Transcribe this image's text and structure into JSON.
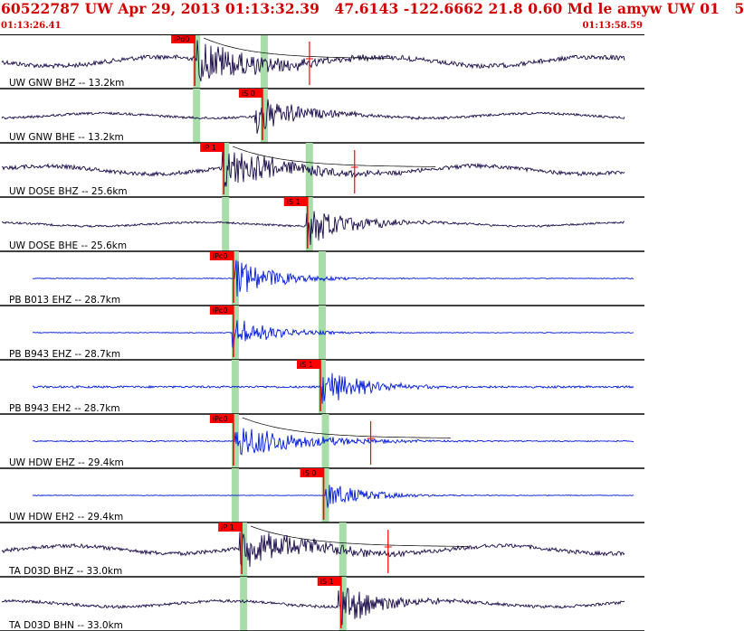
{
  "header": {
    "title": "60522787 UW Apr 29, 2013 01:13:32.39   47.6143 -122.6662 21.8 0.60 Md le amyw UW 01   5",
    "time_start": "01:13:26.41",
    "time_end": "01:13:58.59"
  },
  "colors": {
    "header_text": "#d00000",
    "trace_uw": "#1a0a4a",
    "trace_pb": "#0018d8",
    "pick": "#ff0000",
    "window": "#a8dca8",
    "separator": "#000000"
  },
  "traces": [
    {
      "label": "UW GNW BHZ -- 13.2km",
      "pick": "iPd0",
      "color_key": "uw",
      "p_frac": 0.305,
      "s_frac": 0.41,
      "pick_kind": "P",
      "onset": 0.305,
      "noise": 0.35,
      "burst": 1.0,
      "coda": true
    },
    {
      "label": "UW GNW BHE -- 13.2km",
      "pick": "iS 0",
      "color_key": "uw",
      "p_frac": 0.305,
      "s_frac": 0.41,
      "pick_kind": "S",
      "onset": 0.395,
      "noise": 0.18,
      "burst": 0.95,
      "coda": false
    },
    {
      "label": "UW DOSE BHZ -- 25.6km",
      "pick": "iP 1",
      "color_key": "uw",
      "p_frac": 0.35,
      "s_frac": 0.48,
      "pick_kind": "P",
      "onset": 0.345,
      "noise": 0.3,
      "burst": 1.0,
      "coda": true
    },
    {
      "label": "UW DOSE BHE -- 25.6km",
      "pick": "iS 1",
      "color_key": "uw",
      "p_frac": 0.35,
      "s_frac": 0.48,
      "pick_kind": "S",
      "onset": 0.475,
      "noise": 0.15,
      "burst": 1.0,
      "coda": false
    },
    {
      "label": "PB B013 EHZ -- 28.7km",
      "pick": "iPc0",
      "color_key": "pb",
      "p_frac": 0.365,
      "s_frac": 0.5,
      "pick_kind": "P",
      "onset": 0.365,
      "noise": 0.06,
      "burst": 0.9,
      "coda": false
    },
    {
      "label": "PB B943 EHZ -- 28.7km",
      "pick": "iPc0",
      "color_key": "pb",
      "p_frac": 0.365,
      "s_frac": 0.5,
      "pick_kind": "P",
      "onset": 0.36,
      "noise": 0.06,
      "burst": 0.7,
      "coda": false
    },
    {
      "label": "PB B943 EH2 -- 28.7km",
      "pick": "iS 1",
      "color_key": "pb",
      "p_frac": 0.365,
      "s_frac": 0.5,
      "pick_kind": "S",
      "onset": 0.5,
      "noise": 0.16,
      "burst": 0.85,
      "coda": false
    },
    {
      "label": "UW HDW EHZ -- 29.4km",
      "pick": "iPc0",
      "color_key": "pb",
      "p_frac": 0.365,
      "s_frac": 0.505,
      "pick_kind": "P",
      "onset": 0.365,
      "noise": 0.08,
      "burst": 0.8,
      "coda": true
    },
    {
      "label": "UW HDW EH2 -- 29.4km",
      "pick": "iS 0",
      "color_key": "pb",
      "p_frac": 0.365,
      "s_frac": 0.505,
      "pick_kind": "S",
      "onset": 0.505,
      "noise": 0.05,
      "burst": 0.6,
      "coda": false
    },
    {
      "label": "TA D03D BHZ -- 33.0km",
      "pick": "iP 1",
      "color_key": "uw",
      "p_frac": 0.378,
      "s_frac": 0.532,
      "pick_kind": "P",
      "onset": 0.372,
      "noise": 0.3,
      "burst": 1.0,
      "coda": true
    },
    {
      "label": "TA D03D BHN -- 33.0km",
      "pick": "iS 1",
      "color_key": "uw",
      "p_frac": 0.378,
      "s_frac": 0.532,
      "pick_kind": "S",
      "onset": 0.525,
      "noise": 0.22,
      "burst": 1.0,
      "coda": false
    }
  ]
}
